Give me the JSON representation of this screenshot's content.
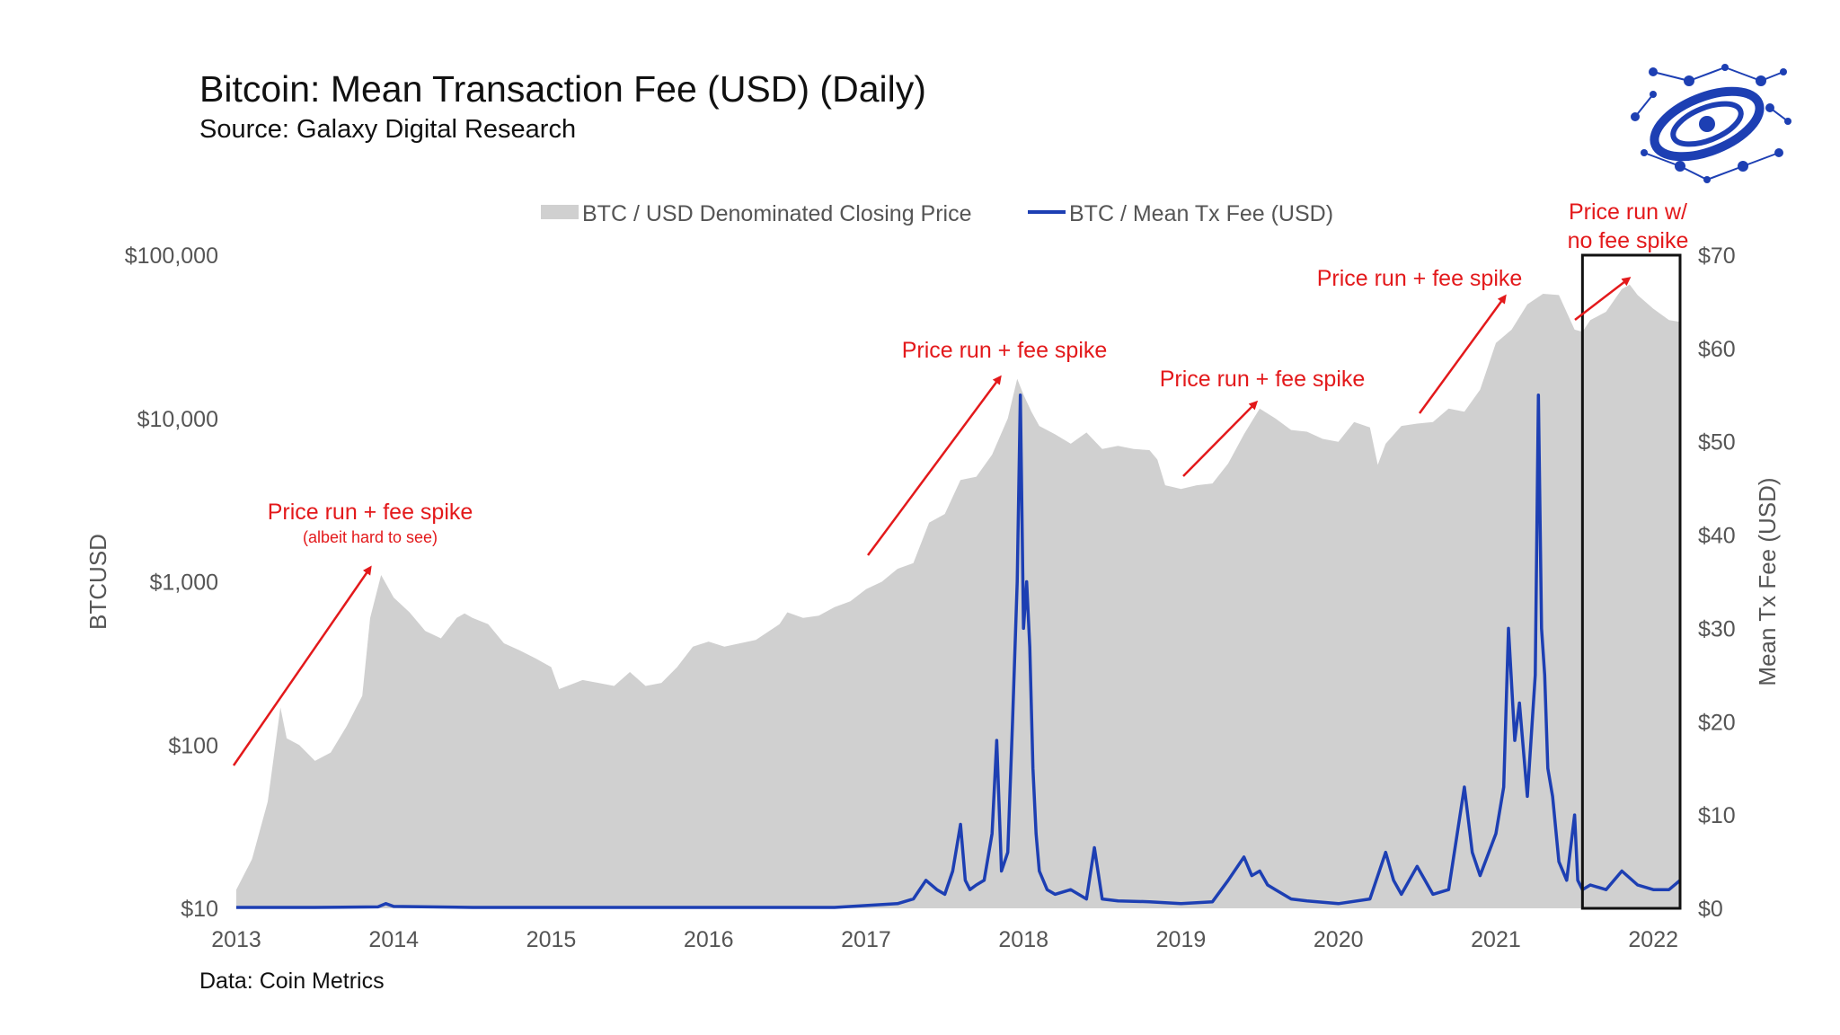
{
  "header": {
    "title": "Bitcoin: Mean Transaction Fee (USD) (Daily)",
    "subtitle": "Source: Galaxy Digital Research"
  },
  "footer": {
    "note": "Data: Coin Metrics"
  },
  "logo": {
    "icon": "galaxy-network-logo-icon",
    "color": "#1d3fb3"
  },
  "colors": {
    "price_fill": "#d0d0d0",
    "fee_line": "#1d3fb3",
    "annotation": "#e3191b",
    "highlight_box": "#111111"
  },
  "chart_data": {
    "type": "area",
    "x_range": [
      2013.0,
      2022.17
    ],
    "x_ticks": [
      "2013",
      "2014",
      "2015",
      "2016",
      "2017",
      "2018",
      "2019",
      "2020",
      "2021",
      "2022"
    ],
    "y_left": {
      "label": "BTCUSD",
      "scale": "log",
      "range": [
        10,
        100000
      ],
      "ticks": [
        "$10",
        "$100",
        "$1,000",
        "$10,000",
        "$100,000"
      ]
    },
    "y_right": {
      "label": "Mean Tx Fee (USD)",
      "scale": "linear",
      "range": [
        0,
        70
      ],
      "ticks": [
        "$0",
        "$10",
        "$20",
        "$30",
        "$40",
        "$50",
        "$60",
        "$70"
      ]
    },
    "legend": {
      "placement": "top-center",
      "entries": [
        "BTC / USD Denominated Closing Price",
        "BTC / Mean Tx Fee (USD)"
      ]
    },
    "series": [
      {
        "name": "BTC / USD Denominated Closing Price",
        "kind": "area",
        "axis": "left",
        "x": [
          2013.0,
          2013.1,
          2013.2,
          2013.28,
          2013.32,
          2013.4,
          2013.5,
          2013.6,
          2013.7,
          2013.8,
          2013.85,
          2013.92,
          2014.0,
          2014.1,
          2014.2,
          2014.3,
          2014.4,
          2014.45,
          2014.5,
          2014.6,
          2014.7,
          2014.8,
          2014.9,
          2015.0,
          2015.05,
          2015.2,
          2015.3,
          2015.4,
          2015.5,
          2015.6,
          2015.7,
          2015.8,
          2015.9,
          2016.0,
          2016.1,
          2016.2,
          2016.3,
          2016.45,
          2016.5,
          2016.6,
          2016.7,
          2016.8,
          2016.9,
          2017.0,
          2017.1,
          2017.2,
          2017.3,
          2017.4,
          2017.5,
          2017.6,
          2017.7,
          2017.8,
          2017.9,
          2017.96,
          2018.0,
          2018.05,
          2018.1,
          2018.2,
          2018.3,
          2018.4,
          2018.5,
          2018.6,
          2018.7,
          2018.8,
          2018.85,
          2018.9,
          2018.95,
          2019.0,
          2019.1,
          2019.2,
          2019.3,
          2019.4,
          2019.5,
          2019.6,
          2019.7,
          2019.8,
          2019.9,
          2020.0,
          2020.1,
          2020.2,
          2020.25,
          2020.3,
          2020.4,
          2020.5,
          2020.6,
          2020.7,
          2020.8,
          2020.9,
          2021.0,
          2021.1,
          2021.2,
          2021.3,
          2021.4,
          2021.5,
          2021.55,
          2021.6,
          2021.7,
          2021.8,
          2021.85,
          2021.9,
          2022.0,
          2022.1,
          2022.17
        ],
        "y": [
          13,
          20,
          45,
          170,
          110,
          100,
          80,
          90,
          130,
          200,
          600,
          1100,
          800,
          650,
          500,
          450,
          600,
          640,
          600,
          550,
          420,
          380,
          340,
          300,
          220,
          250,
          240,
          230,
          280,
          230,
          240,
          300,
          400,
          430,
          400,
          420,
          440,
          550,
          650,
          600,
          620,
          700,
          760,
          900,
          1000,
          1200,
          1300,
          2300,
          2600,
          4200,
          4400,
          6000,
          10000,
          17500,
          14000,
          11000,
          9000,
          8000,
          7000,
          8200,
          6500,
          6800,
          6500,
          6400,
          5600,
          3900,
          3800,
          3700,
          3900,
          4000,
          5300,
          8000,
          11500,
          10000,
          8500,
          8300,
          7500,
          7200,
          9500,
          8800,
          5200,
          7000,
          9000,
          9300,
          9500,
          11500,
          11000,
          15000,
          29000,
          35000,
          50000,
          58000,
          57000,
          35000,
          34000,
          40000,
          45000,
          62000,
          66000,
          57000,
          47000,
          40000,
          39000
        ]
      },
      {
        "name": "BTC / Mean Tx Fee (USD)",
        "kind": "line",
        "axis": "right",
        "x": [
          2013.0,
          2013.5,
          2013.9,
          2013.95,
          2014.0,
          2014.5,
          2015.0,
          2015.5,
          2016.0,
          2016.3,
          2016.5,
          2016.8,
          2017.0,
          2017.2,
          2017.3,
          2017.38,
          2017.45,
          2017.5,
          2017.55,
          2017.6,
          2017.63,
          2017.66,
          2017.7,
          2017.75,
          2017.8,
          2017.83,
          2017.86,
          2017.9,
          2017.93,
          2017.96,
          2017.98,
          2018.0,
          2018.02,
          2018.04,
          2018.06,
          2018.08,
          2018.1,
          2018.15,
          2018.2,
          2018.3,
          2018.4,
          2018.45,
          2018.5,
          2018.6,
          2018.8,
          2019.0,
          2019.2,
          2019.3,
          2019.4,
          2019.45,
          2019.5,
          2019.55,
          2019.6,
          2019.7,
          2019.8,
          2020.0,
          2020.2,
          2020.3,
          2020.35,
          2020.4,
          2020.5,
          2020.55,
          2020.6,
          2020.7,
          2020.8,
          2020.85,
          2020.9,
          2021.0,
          2021.05,
          2021.08,
          2021.12,
          2021.15,
          2021.2,
          2021.25,
          2021.27,
          2021.29,
          2021.31,
          2021.33,
          2021.36,
          2021.4,
          2021.45,
          2021.5,
          2021.52,
          2021.55,
          2021.6,
          2021.7,
          2021.8,
          2021.9,
          2022.0,
          2022.1,
          2022.17
        ],
        "y": [
          0.1,
          0.1,
          0.15,
          0.5,
          0.2,
          0.1,
          0.1,
          0.1,
          0.1,
          0.1,
          0.1,
          0.1,
          0.3,
          0.5,
          1.0,
          3.0,
          2.0,
          1.5,
          4.0,
          9.0,
          3.0,
          2.0,
          2.5,
          3.0,
          8.0,
          18.0,
          4.0,
          6.0,
          20.0,
          35.0,
          55.0,
          30.0,
          35.0,
          28.0,
          15.0,
          8.0,
          4.0,
          2.0,
          1.5,
          2.0,
          1.0,
          6.5,
          1.0,
          0.8,
          0.7,
          0.5,
          0.7,
          3.0,
          5.5,
          3.5,
          4.0,
          2.5,
          2.0,
          1.0,
          0.8,
          0.5,
          1.0,
          6.0,
          3.0,
          1.5,
          4.5,
          3.0,
          1.5,
          2.0,
          13.0,
          6.0,
          3.5,
          8.0,
          13.0,
          30.0,
          18.0,
          22.0,
          12.0,
          25.0,
          55.0,
          30.0,
          25.0,
          15.0,
          12.0,
          5.0,
          3.0,
          10.0,
          3.0,
          2.0,
          2.5,
          2.0,
          4.0,
          2.5,
          2.0,
          2.0,
          3.0
        ]
      }
    ],
    "annotations": [
      {
        "text": "Price run + fee spike",
        "subtext": "(albeit hard to see)"
      },
      {
        "text": "Price run + fee spike"
      },
      {
        "text": "Price run + fee spike"
      },
      {
        "text": "Price run + fee spike"
      },
      {
        "text": "Price run w/",
        "text2": "no fee spike"
      }
    ]
  }
}
